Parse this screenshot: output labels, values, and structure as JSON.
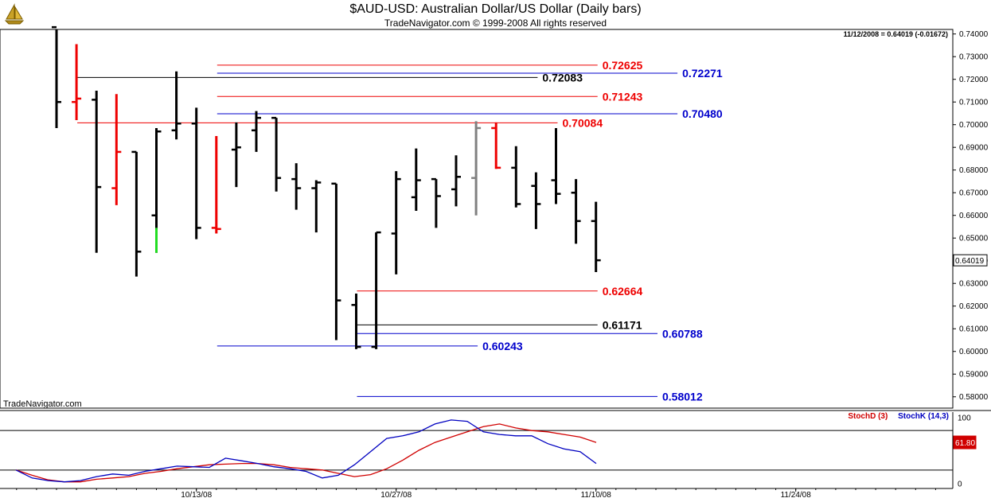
{
  "title": "$AUD-USD:  Australian Dollar/US Dollar  (Daily bars)",
  "subtitle": "TradeNavigator.com © 1999-2008 All rights reserved",
  "quote_readout": "11/12/2008 = 0.64019 (-0.01672)",
  "watermark": "TradeNavigator.com",
  "last_price_label": "0.64019",
  "stoch_current_label": "61.80",
  "colors": {
    "up_bar": "#000000",
    "down_bar": "#ee0000",
    "neutral_bar": "#808080",
    "highlight_bar": "#22dd22",
    "red_level": "#ee0000",
    "blue_level": "#0000cc",
    "black_level": "#000000",
    "stoch_d": "#d00000",
    "stoch_k": "#0000c0"
  },
  "chart_data": [
    {
      "type": "ohlc",
      "title": "$AUD-USD:  Australian Dollar/US Dollar  (Daily bars)",
      "ylim": [
        0.575,
        0.742
      ],
      "y_ticks": [
        0.58,
        0.59,
        0.6,
        0.61,
        0.62,
        0.63,
        0.64,
        0.65,
        0.66,
        0.67,
        0.68,
        0.69,
        0.7,
        0.71,
        0.72,
        0.73,
        0.74
      ],
      "y_tick_labels": [
        "0.58000",
        "0.59000",
        "0.60000",
        "0.61000",
        "0.62000",
        "0.63000",
        "0.64000",
        "0.65000",
        "0.66000",
        "0.67000",
        "0.68000",
        "0.69000",
        "0.70000",
        "0.71000",
        "0.72000",
        "0.73000",
        "0.74000"
      ],
      "x_tick_labels": [
        {
          "label": "10/13/08",
          "day": 7
        },
        {
          "label": "10/27/08",
          "day": 17
        },
        {
          "label": "11/10/08",
          "day": 27
        },
        {
          "label": "11/24/08",
          "day": 37
        }
      ],
      "bars": [
        {
          "o": 0.743,
          "h": 0.743,
          "l": 0.6985,
          "c": 0.71,
          "color": "up_bar"
        },
        {
          "o": 0.71,
          "h": 0.7355,
          "l": 0.702,
          "c": 0.7115,
          "color": "down_bar"
        },
        {
          "o": 0.711,
          "h": 0.715,
          "l": 0.6435,
          "c": 0.6725,
          "color": "up_bar"
        },
        {
          "o": 0.672,
          "h": 0.7135,
          "l": 0.6645,
          "c": 0.688,
          "color": "down_bar"
        },
        {
          "o": 0.688,
          "h": 0.688,
          "l": 0.633,
          "c": 0.644,
          "color": "up_bar"
        },
        {
          "o": 0.66,
          "h": 0.6985,
          "l": 0.6435,
          "c": 0.697,
          "color": "up_bar",
          "low_segment_color": "highlight_bar"
        },
        {
          "o": 0.6975,
          "h": 0.7235,
          "l": 0.6935,
          "c": 0.7005,
          "color": "up_bar"
        },
        {
          "o": 0.7005,
          "h": 0.7075,
          "l": 0.6495,
          "c": 0.6545,
          "color": "up_bar"
        },
        {
          "o": 0.6545,
          "h": 0.695,
          "l": 0.652,
          "c": 0.654,
          "color": "down_bar"
        },
        {
          "o": 0.689,
          "h": 0.701,
          "l": 0.6725,
          "c": 0.69,
          "color": "up_bar"
        },
        {
          "o": 0.6975,
          "h": 0.706,
          "l": 0.688,
          "c": 0.703,
          "color": "up_bar"
        },
        {
          "o": 0.703,
          "h": 0.703,
          "l": 0.6705,
          "c": 0.6765,
          "color": "up_bar"
        },
        {
          "o": 0.676,
          "h": 0.683,
          "l": 0.6625,
          "c": 0.672,
          "color": "up_bar"
        },
        {
          "o": 0.672,
          "h": 0.6755,
          "l": 0.6525,
          "c": 0.6745,
          "color": "up_bar"
        },
        {
          "o": 0.674,
          "h": 0.674,
          "l": 0.605,
          "c": 0.6225,
          "color": "up_bar"
        },
        {
          "o": 0.6205,
          "h": 0.6255,
          "l": 0.601,
          "c": 0.602,
          "color": "up_bar"
        },
        {
          "o": 0.602,
          "h": 0.6525,
          "l": 0.601,
          "c": 0.6525,
          "color": "up_bar"
        },
        {
          "o": 0.652,
          "h": 0.6795,
          "l": 0.634,
          "c": 0.676,
          "color": "up_bar"
        },
        {
          "o": 0.668,
          "h": 0.6895,
          "l": 0.662,
          "c": 0.6755,
          "color": "up_bar"
        },
        {
          "o": 0.676,
          "h": 0.676,
          "l": 0.6545,
          "c": 0.6685,
          "color": "up_bar"
        },
        {
          "o": 0.6715,
          "h": 0.6865,
          "l": 0.664,
          "c": 0.677,
          "color": "up_bar"
        },
        {
          "o": 0.6765,
          "h": 0.7015,
          "l": 0.66,
          "c": 0.6985,
          "color": "neutral_bar"
        },
        {
          "o": 0.6985,
          "h": 0.701,
          "l": 0.6805,
          "c": 0.681,
          "color": "down_bar"
        },
        {
          "o": 0.681,
          "h": 0.6905,
          "l": 0.6635,
          "c": 0.665,
          "color": "up_bar"
        },
        {
          "o": 0.673,
          "h": 0.679,
          "l": 0.654,
          "c": 0.665,
          "color": "up_bar"
        },
        {
          "o": 0.6755,
          "h": 0.6985,
          "l": 0.665,
          "c": 0.6695,
          "color": "up_bar"
        },
        {
          "o": 0.67,
          "h": 0.676,
          "l": 0.6475,
          "c": 0.6575,
          "color": "up_bar"
        },
        {
          "o": 0.6575,
          "h": 0.666,
          "l": 0.635,
          "c": 0.6402,
          "color": "up_bar"
        }
      ],
      "levels": [
        {
          "value": 0.72625,
          "label": "0.72625",
          "color": "red_level",
          "x_from_day": 8,
          "x_to_day": 27
        },
        {
          "value": 0.72271,
          "label": "0.72271",
          "color": "blue_level",
          "x_from_day": 8,
          "x_to_day": 31
        },
        {
          "value": 0.72083,
          "label": "0.72083",
          "color": "black_level",
          "x_from_day": 1,
          "x_to_day": 24
        },
        {
          "value": 0.71243,
          "label": "0.71243",
          "color": "red_level",
          "x_from_day": 8,
          "x_to_day": 27
        },
        {
          "value": 0.7048,
          "label": "0.70480",
          "color": "blue_level",
          "x_from_day": 8,
          "x_to_day": 31
        },
        {
          "value": 0.70084,
          "label": "0.70084",
          "color": "red_level",
          "x_from_day": 1,
          "x_to_day": 25
        },
        {
          "value": 0.62664,
          "label": "0.62664",
          "color": "red_level",
          "x_from_day": 15,
          "x_to_day": 27
        },
        {
          "value": 0.61171,
          "label": "0.61171",
          "color": "black_level",
          "x_from_day": 15,
          "x_to_day": 27
        },
        {
          "value": 0.60788,
          "label": "0.60788",
          "color": "blue_level",
          "x_from_day": 15,
          "x_to_day": 30
        },
        {
          "value": 0.60243,
          "label": "0.60243",
          "color": "blue_level",
          "x_from_day": 8,
          "x_to_day": 21
        },
        {
          "value": 0.58012,
          "label": "0.58012",
          "color": "blue_level",
          "x_from_day": 15,
          "x_to_day": 30
        }
      ]
    },
    {
      "type": "line",
      "title": "",
      "ylim": [
        -8,
        108
      ],
      "y_tick_labels": [
        {
          "value": 100,
          "label": "100"
        },
        {
          "value": 0,
          "label": "0"
        }
      ],
      "reference_levels": [
        80,
        20
      ],
      "series": [
        {
          "name": "StochD (3)",
          "color": "stoch_d",
          "values": [
            20,
            12,
            5,
            2,
            2,
            6,
            8,
            10,
            15,
            18,
            22,
            25,
            28,
            29,
            30,
            30,
            28,
            24,
            22,
            20,
            15,
            10,
            13,
            22,
            35,
            50,
            62,
            70,
            78,
            86,
            90,
            84,
            80,
            78,
            74,
            70,
            62
          ]
        },
        {
          "name": "StochK (14,3)",
          "color": "stoch_k",
          "values": [
            20,
            8,
            4,
            2,
            4,
            10,
            14,
            12,
            18,
            22,
            26,
            25,
            24,
            38,
            34,
            30,
            25,
            22,
            18,
            8,
            12,
            28,
            48,
            68,
            72,
            78,
            90,
            96,
            94,
            78,
            74,
            72,
            72,
            60,
            52,
            48,
            30
          ]
        }
      ]
    }
  ]
}
